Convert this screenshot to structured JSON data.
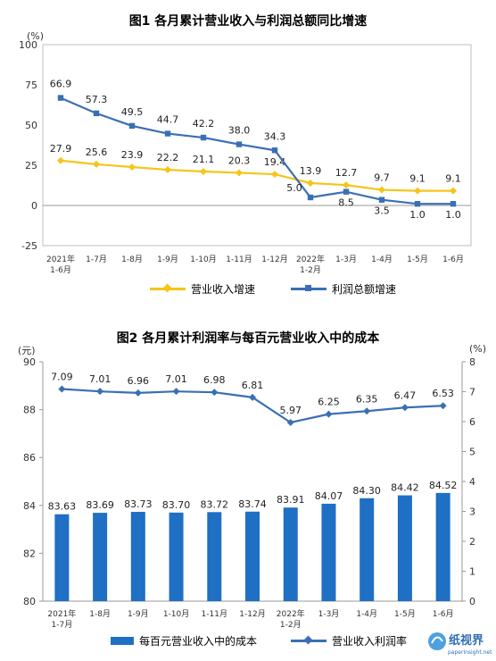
{
  "chart_data": [
    {
      "type": "line",
      "title": "图1  各月累计营业收入与利润总额同比增速",
      "y_unit": "(%)",
      "ylim": [
        -25,
        100
      ],
      "yticks": [
        "100",
        "75",
        "50",
        "25",
        "0",
        "-25"
      ],
      "categories": [
        [
          "2021年",
          "1-6月"
        ],
        [
          "1-7月"
        ],
        [
          "1-8月"
        ],
        [
          "1-9月"
        ],
        [
          "1-10月"
        ],
        [
          "1-11月"
        ],
        [
          "1-12月"
        ],
        [
          "2022年",
          "1-2月"
        ],
        [
          "1-3月"
        ],
        [
          "1-4月"
        ],
        [
          "1-5月"
        ],
        [
          "1-6月"
        ]
      ],
      "series": [
        {
          "name": "营业收入增速",
          "color": "#F5C518",
          "marker": "diamond",
          "values": [
            27.9,
            25.6,
            23.9,
            22.2,
            21.1,
            20.3,
            19.4,
            13.9,
            12.7,
            9.7,
            9.1,
            9.1
          ],
          "labels": [
            "27.9",
            "25.6",
            "23.9",
            "22.2",
            "21.1",
            "20.3",
            "19.4",
            "13.9",
            "12.7",
            "9.7",
            "9.1",
            "9.1"
          ]
        },
        {
          "name": "利润总额增速",
          "color": "#3A6FB5",
          "marker": "square",
          "values": [
            66.9,
            57.3,
            49.5,
            44.7,
            42.2,
            38.0,
            34.3,
            5.0,
            8.5,
            3.5,
            1.0,
            1.0
          ],
          "labels": [
            "66.9",
            "57.3",
            "49.5",
            "44.7",
            "42.2",
            "38.0",
            "34.3",
            "5.0",
            "8.5",
            "3.5",
            "1.0",
            "1.0"
          ]
        }
      ],
      "grid": false,
      "legend": "bottom"
    },
    {
      "type": "bar+line",
      "title": "图2  各月累计利润率与每百元营业收入中的成本",
      "left_unit": "(元)",
      "right_unit": "(%)",
      "ylim_left": [
        80,
        90
      ],
      "ylim_right": [
        0,
        8
      ],
      "yticks_left": [
        "90",
        "88",
        "86",
        "84",
        "82",
        "80"
      ],
      "yticks_right": [
        "8",
        "7",
        "6",
        "5",
        "4",
        "3",
        "2",
        "1",
        "0"
      ],
      "categories": [
        [
          "2021年",
          "1-7月"
        ],
        [
          "1-8月"
        ],
        [
          "1-9月"
        ],
        [
          "1-10月"
        ],
        [
          "1-11月"
        ],
        [
          "1-12月"
        ],
        [
          "2022年",
          "1-2月"
        ],
        [
          "1-3月"
        ],
        [
          "1-4月"
        ],
        [
          "1-5月"
        ],
        [
          "1-6月"
        ]
      ],
      "bars": {
        "name": "每百元营业收入中的成本",
        "color": "#1F6FC4",
        "values": [
          83.63,
          83.69,
          83.73,
          83.7,
          83.72,
          83.74,
          83.91,
          84.07,
          84.3,
          84.42,
          84.52
        ],
        "labels": [
          "83.63",
          "83.69",
          "83.73",
          "83.70",
          "83.72",
          "83.74",
          "83.91",
          "84.07",
          "84.30",
          "84.42",
          "84.52"
        ]
      },
      "line": {
        "name": "营业收入利润率",
        "color": "#3A6FB5",
        "marker": "diamond",
        "values": [
          7.09,
          7.01,
          6.96,
          7.01,
          6.98,
          6.81,
          5.97,
          6.25,
          6.35,
          6.47,
          6.53
        ],
        "labels": [
          "7.09",
          "7.01",
          "6.96",
          "7.01",
          "6.98",
          "6.81",
          "5.97",
          "6.25",
          "6.35",
          "6.47",
          "6.53"
        ]
      },
      "grid": false,
      "legend": "bottom"
    }
  ],
  "watermark": {
    "cn": "纸视界",
    "en": "paperinsight.net"
  }
}
